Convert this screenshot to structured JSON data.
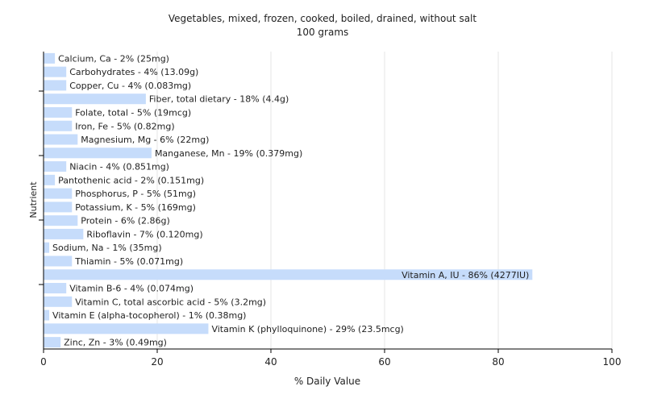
{
  "chart_data": {
    "type": "bar",
    "orientation": "horizontal",
    "title": "Vegetables, mixed, frozen, cooked, boiled, drained, without salt",
    "subtitle": "100 grams",
    "xlabel": "% Daily Value",
    "ylabel": "Nutrient",
    "xlim": [
      0,
      100
    ],
    "xticks": [
      0,
      20,
      40,
      60,
      80,
      100
    ],
    "grid": true,
    "legend": "none",
    "bar_color": "#c6dcfb",
    "categories": [
      "Calcium, Ca",
      "Carbohydrates",
      "Copper, Cu",
      "Fiber, total dietary",
      "Folate, total",
      "Iron, Fe",
      "Magnesium, Mg",
      "Manganese, Mn",
      "Niacin",
      "Pantothenic acid",
      "Phosphorus, P",
      "Potassium, K",
      "Protein",
      "Riboflavin",
      "Sodium, Na",
      "Thiamin",
      "Vitamin A, IU",
      "Vitamin B-6",
      "Vitamin C, total ascorbic acid",
      "Vitamin E (alpha-tocopherol)",
      "Vitamin K (phylloquinone)",
      "Zinc, Zn"
    ],
    "values": [
      2,
      4,
      4,
      18,
      5,
      5,
      6,
      19,
      4,
      2,
      5,
      5,
      6,
      7,
      1,
      5,
      86,
      4,
      5,
      1,
      29,
      3
    ],
    "labels": [
      "Calcium, Ca - 2% (25mg)",
      "Carbohydrates - 4% (13.09g)",
      "Copper, Cu - 4% (0.083mg)",
      "Fiber, total dietary - 18% (4.4g)",
      "Folate, total - 5% (19mcg)",
      "Iron, Fe - 5% (0.82mg)",
      "Magnesium, Mg - 6% (22mg)",
      "Manganese, Mn - 19% (0.379mg)",
      "Niacin - 4% (0.851mg)",
      "Pantothenic acid - 2% (0.151mg)",
      "Phosphorus, P - 5% (51mg)",
      "Potassium, K - 5% (169mg)",
      "Protein - 6% (2.86g)",
      "Riboflavin - 7% (0.120mg)",
      "Sodium, Na - 1% (35mg)",
      "Thiamin - 5% (0.071mg)",
      "Vitamin A, IU - 86% (4277IU)",
      "Vitamin B-6 - 4% (0.074mg)",
      "Vitamin C, total ascorbic acid - 5% (3.2mg)",
      "Vitamin E (alpha-tocopherol) - 1% (0.38mg)",
      "Vitamin K (phylloquinone) - 29% (23.5mcg)",
      "Zinc, Zn - 3% (0.49mg)"
    ]
  }
}
